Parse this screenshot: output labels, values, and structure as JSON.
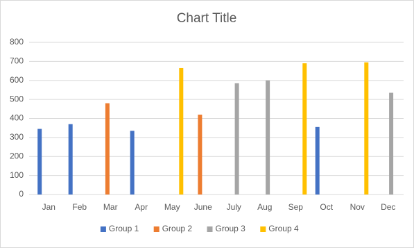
{
  "chart_data": {
    "type": "bar",
    "title": "Chart Title",
    "categories": [
      "Jan",
      "Feb",
      "Mar",
      "Apr",
      "May",
      "June",
      "July",
      "Aug",
      "Sep",
      "Oct",
      "Nov",
      "Dec"
    ],
    "series": [
      {
        "name": "Group 1",
        "color": "#4472c4",
        "values": [
          345,
          370,
          null,
          335,
          null,
          null,
          null,
          null,
          null,
          355,
          null,
          null
        ]
      },
      {
        "name": "Group 2",
        "color": "#ed7d31",
        "values": [
          null,
          null,
          480,
          null,
          null,
          420,
          null,
          null,
          null,
          null,
          null,
          null
        ]
      },
      {
        "name": "Group 3",
        "color": "#a5a5a5",
        "values": [
          null,
          null,
          null,
          null,
          null,
          null,
          585,
          600,
          null,
          null,
          null,
          535
        ]
      },
      {
        "name": "Group 4",
        "color": "#ffc000",
        "values": [
          null,
          null,
          null,
          null,
          665,
          null,
          null,
          null,
          690,
          null,
          695,
          null
        ]
      }
    ],
    "ylim": [
      0,
      800
    ],
    "yticks": [
      0,
      100,
      200,
      300,
      400,
      500,
      600,
      700,
      800
    ],
    "grid": true,
    "legend": "bottom"
  }
}
